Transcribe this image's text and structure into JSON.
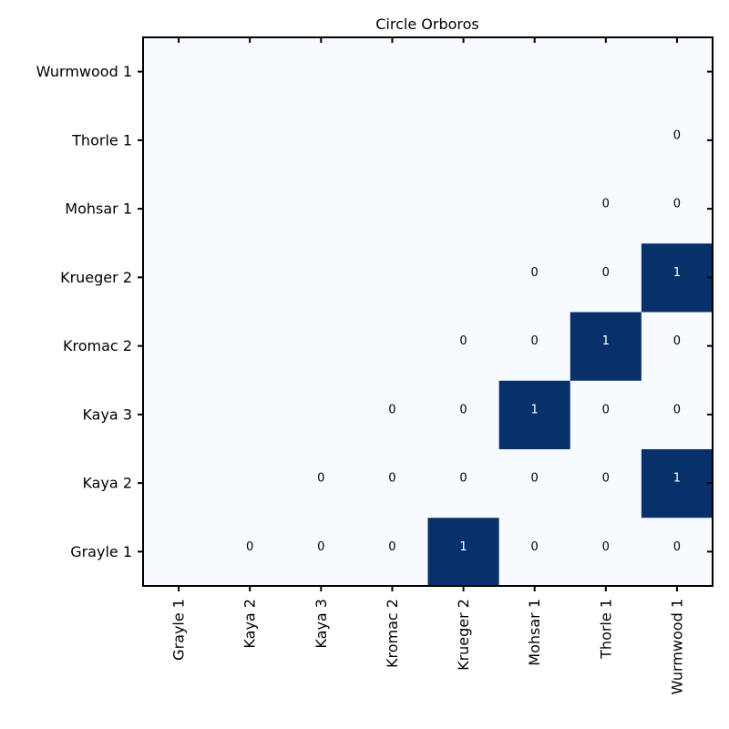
{
  "chart_data": {
    "type": "heatmap",
    "title": "Circle Orboros",
    "xlabel": "",
    "ylabel": "",
    "x_categories": [
      "Grayle 1",
      "Kaya 2",
      "Kaya 3",
      "Kromac 2",
      "Krueger 2",
      "Mohsar 1",
      "Thorle 1",
      "Wurmwood 1"
    ],
    "y_categories": [
      "Grayle 1",
      "Kaya 2",
      "Kaya 3",
      "Kromac 2",
      "Krueger 2",
      "Mohsar 1",
      "Thorle 1",
      "Wurmwood 1"
    ],
    "cells": [
      {
        "row": "Grayle 1",
        "col": "Kaya 2",
        "value": 0
      },
      {
        "row": "Grayle 1",
        "col": "Kaya 3",
        "value": 0
      },
      {
        "row": "Grayle 1",
        "col": "Kromac 2",
        "value": 0
      },
      {
        "row": "Grayle 1",
        "col": "Krueger 2",
        "value": 1
      },
      {
        "row": "Grayle 1",
        "col": "Mohsar 1",
        "value": 0
      },
      {
        "row": "Grayle 1",
        "col": "Thorle 1",
        "value": 0
      },
      {
        "row": "Grayle 1",
        "col": "Wurmwood 1",
        "value": 0
      },
      {
        "row": "Kaya 2",
        "col": "Kaya 3",
        "value": 0
      },
      {
        "row": "Kaya 2",
        "col": "Kromac 2",
        "value": 0
      },
      {
        "row": "Kaya 2",
        "col": "Krueger 2",
        "value": 0
      },
      {
        "row": "Kaya 2",
        "col": "Mohsar 1",
        "value": 0
      },
      {
        "row": "Kaya 2",
        "col": "Thorle 1",
        "value": 0
      },
      {
        "row": "Kaya 2",
        "col": "Wurmwood 1",
        "value": 1
      },
      {
        "row": "Kaya 3",
        "col": "Kromac 2",
        "value": 0
      },
      {
        "row": "Kaya 3",
        "col": "Krueger 2",
        "value": 0
      },
      {
        "row": "Kaya 3",
        "col": "Mohsar 1",
        "value": 1
      },
      {
        "row": "Kaya 3",
        "col": "Thorle 1",
        "value": 0
      },
      {
        "row": "Kaya 3",
        "col": "Wurmwood 1",
        "value": 0
      },
      {
        "row": "Kromac 2",
        "col": "Krueger 2",
        "value": 0
      },
      {
        "row": "Kromac 2",
        "col": "Mohsar 1",
        "value": 0
      },
      {
        "row": "Kromac 2",
        "col": "Thorle 1",
        "value": 1
      },
      {
        "row": "Kromac 2",
        "col": "Wurmwood 1",
        "value": 0
      },
      {
        "row": "Krueger 2",
        "col": "Mohsar 1",
        "value": 0
      },
      {
        "row": "Krueger 2",
        "col": "Thorle 1",
        "value": 0
      },
      {
        "row": "Krueger 2",
        "col": "Wurmwood 1",
        "value": 1
      },
      {
        "row": "Mohsar 1",
        "col": "Thorle 1",
        "value": 0
      },
      {
        "row": "Mohsar 1",
        "col": "Wurmwood 1",
        "value": 0
      },
      {
        "row": "Thorle 1",
        "col": "Wurmwood 1",
        "value": 0
      }
    ],
    "value_range": [
      0,
      1
    ],
    "colors": {
      "low": "#f7fbff",
      "high": "#08306b",
      "text_on_low": "#000000",
      "text_on_high": "#ffffff"
    },
    "grid": false,
    "legend": "none"
  }
}
